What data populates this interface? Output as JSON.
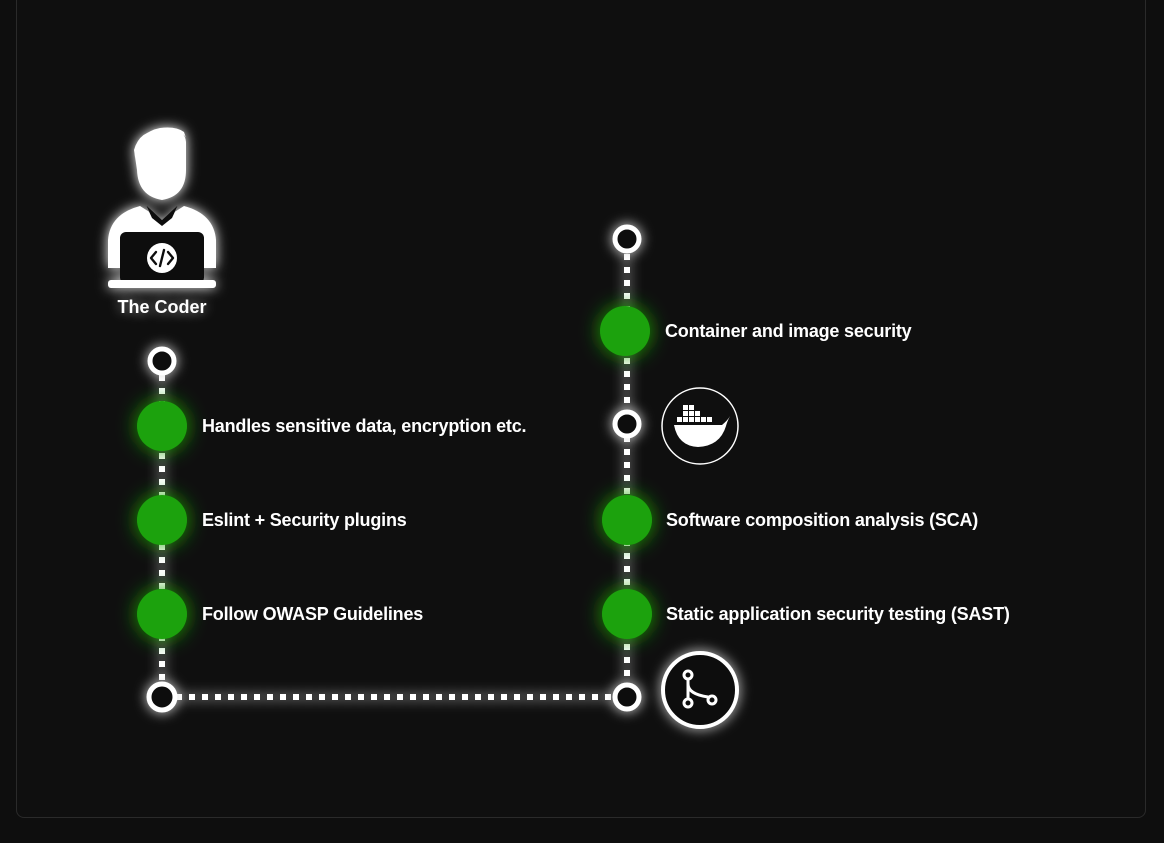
{
  "colors": {
    "background": "#0e0e0e",
    "panel": "#0f0f0f",
    "node_fill": "#1fa20b",
    "line": "#ffffff",
    "text": "#ffffff"
  },
  "actor": {
    "label": "The Coder",
    "icon": "developer-laptop-icon"
  },
  "left_track": {
    "steps": [
      {
        "label": "Handles sensitive data, encryption etc."
      },
      {
        "label": "Eslint + Security plugins"
      },
      {
        "label": "Follow OWASP Guidelines"
      }
    ]
  },
  "right_track": {
    "steps": [
      {
        "label": "Container and image security"
      },
      {
        "label": "Software composition analysis (SCA)"
      },
      {
        "label": "Static application security testing (SAST)"
      }
    ],
    "icons": [
      {
        "name": "docker-icon"
      },
      {
        "name": "git-branch-icon"
      }
    ]
  }
}
